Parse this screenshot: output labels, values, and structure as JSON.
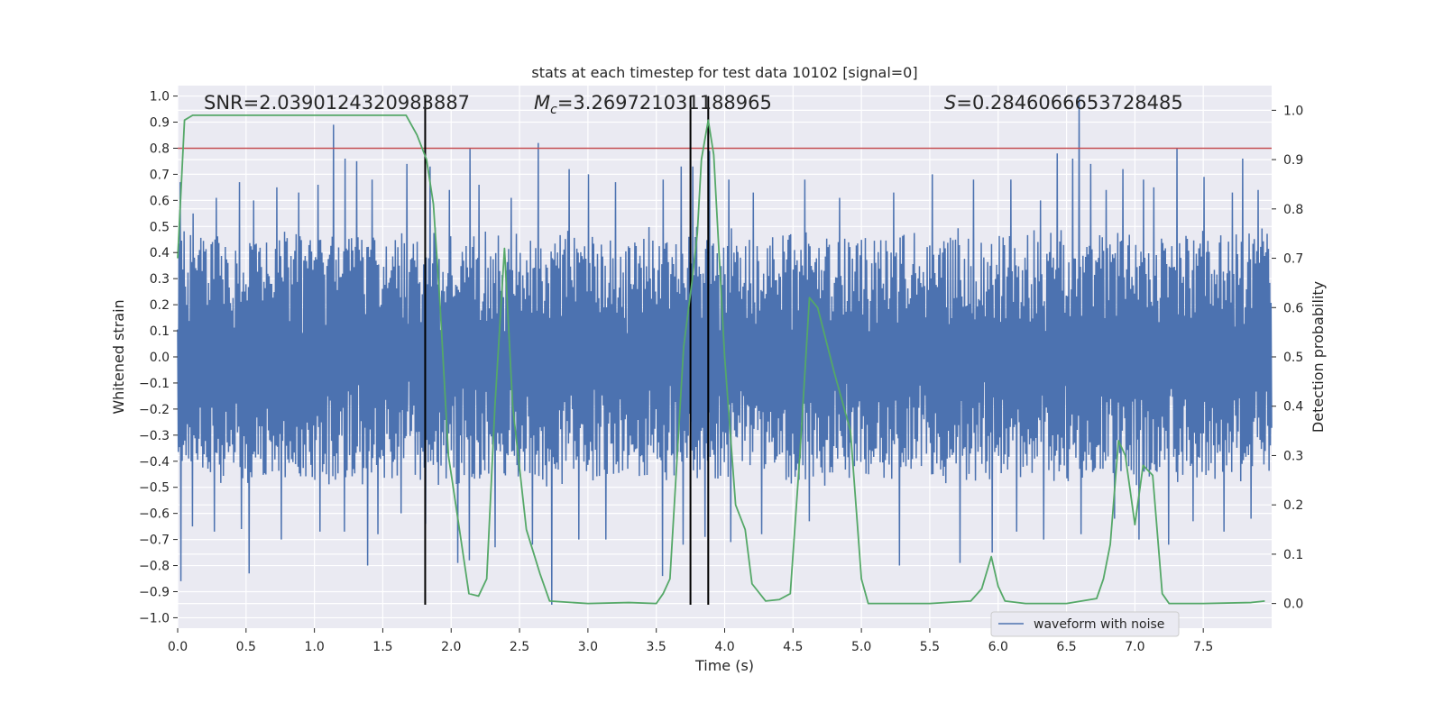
{
  "chart_data": {
    "type": "line",
    "title": "stats at each timestep for test data 10102 [signal=0]",
    "xlabel": "Time (s)",
    "ylabel": "Whitened strain",
    "y2label": "Detection probability",
    "xlim": [
      0.0,
      8.0
    ],
    "ylim": [
      -1.04,
      1.04
    ],
    "y2lim": [
      -0.05,
      1.05
    ],
    "xticks": [
      "0.0",
      "0.5",
      "1.0",
      "1.5",
      "2.0",
      "2.5",
      "3.0",
      "3.5",
      "4.0",
      "4.5",
      "5.0",
      "5.5",
      "6.0",
      "6.5",
      "7.0",
      "7.5"
    ],
    "yticks": [
      "1.0",
      "0.9",
      "0.8",
      "0.7",
      "0.6",
      "0.5",
      "0.4",
      "0.3",
      "0.2",
      "0.1",
      "0.0",
      "−0.1",
      "−0.2",
      "−0.3",
      "−0.4",
      "−0.5",
      "−0.6",
      "−0.7",
      "−0.8",
      "−0.9",
      "−1.0"
    ],
    "y2ticks": [
      "1.0",
      "0.9",
      "0.8",
      "0.7",
      "0.6",
      "0.5",
      "0.4",
      "0.3",
      "0.2",
      "0.1",
      "0.0"
    ],
    "grid": true,
    "legend_position": "lower-right",
    "annotations": {
      "snr": "SNR=2.0390124320983887",
      "mc_prefix": "M",
      "mc_sub": "c",
      "mc_value": "=3.269721031188965",
      "s_prefix": "S",
      "s_value": "=0.2846066653728485"
    },
    "threshold": {
      "y": 0.8,
      "color": "#c44e52"
    },
    "vertical_lines": [
      1.81,
      3.75,
      3.88
    ],
    "series": [
      {
        "name": "waveform with noise",
        "axis": "left",
        "color": "#4c72b0",
        "style": "dense-noise",
        "envelope_typical": 0.45,
        "peaks": [
          [
            0.02,
            0.67
          ],
          [
            0.11,
            0.55
          ],
          [
            0.28,
            0.61
          ],
          [
            0.45,
            0.67
          ],
          [
            0.55,
            0.6
          ],
          [
            0.72,
            0.65
          ],
          [
            0.88,
            0.63
          ],
          [
            1.02,
            0.66
          ],
          [
            1.14,
            0.89
          ],
          [
            1.22,
            0.76
          ],
          [
            1.31,
            0.75
          ],
          [
            1.42,
            0.68
          ],
          [
            1.67,
            0.74
          ],
          [
            1.84,
            0.73
          ],
          [
            1.98,
            0.64
          ],
          [
            2.14,
            0.8
          ],
          [
            2.2,
            0.66
          ],
          [
            2.44,
            0.61
          ],
          [
            2.63,
            0.82
          ],
          [
            2.86,
            0.72
          ],
          [
            3.0,
            0.7
          ],
          [
            3.2,
            0.67
          ],
          [
            3.55,
            0.68
          ],
          [
            3.68,
            0.73
          ],
          [
            3.76,
            0.73
          ],
          [
            3.89,
            0.79
          ],
          [
            4.03,
            0.68
          ],
          [
            4.21,
            0.63
          ],
          [
            4.58,
            0.68
          ],
          [
            4.84,
            0.61
          ],
          [
            5.23,
            0.63
          ],
          [
            5.52,
            0.7
          ],
          [
            5.82,
            0.68
          ],
          [
            6.09,
            0.68
          ],
          [
            6.31,
            0.6
          ],
          [
            6.43,
            0.78
          ],
          [
            6.54,
            0.76
          ],
          [
            6.59,
            1.0
          ],
          [
            6.67,
            0.74
          ],
          [
            6.79,
            0.64
          ],
          [
            6.91,
            0.72
          ],
          [
            7.06,
            0.68
          ],
          [
            7.14,
            0.65
          ],
          [
            7.31,
            0.8
          ],
          [
            7.5,
            0.69
          ],
          [
            7.71,
            0.63
          ],
          [
            7.79,
            0.76
          ],
          [
            7.9,
            0.64
          ]
        ],
        "troughs": [
          [
            0.02,
            -0.86
          ],
          [
            0.11,
            -0.65
          ],
          [
            0.27,
            -0.67
          ],
          [
            0.46,
            -0.66
          ],
          [
            0.52,
            -0.83
          ],
          [
            0.76,
            -0.7
          ],
          [
            1.04,
            -0.67
          ],
          [
            1.22,
            -0.67
          ],
          [
            1.39,
            -0.8
          ],
          [
            1.46,
            -0.68
          ],
          [
            1.63,
            -0.6
          ],
          [
            1.81,
            -0.64
          ],
          [
            2.05,
            -0.79
          ],
          [
            2.13,
            -0.78
          ],
          [
            2.32,
            -0.73
          ],
          [
            2.59,
            -0.72
          ],
          [
            2.73,
            -0.95
          ],
          [
            2.93,
            -0.7
          ],
          [
            3.13,
            -0.7
          ],
          [
            3.54,
            -0.84
          ],
          [
            3.69,
            -0.72
          ],
          [
            3.85,
            -0.69
          ],
          [
            4.04,
            -0.71
          ],
          [
            4.27,
            -0.68
          ],
          [
            4.62,
            -0.63
          ],
          [
            5.28,
            -0.8
          ],
          [
            5.72,
            -0.79
          ],
          [
            5.95,
            -0.75
          ],
          [
            6.13,
            -0.67
          ],
          [
            6.33,
            -0.7
          ],
          [
            6.6,
            -0.68
          ],
          [
            6.85,
            -0.62
          ],
          [
            7.03,
            -0.7
          ],
          [
            7.24,
            -0.72
          ],
          [
            7.42,
            -0.63
          ],
          [
            7.65,
            -0.67
          ],
          [
            7.85,
            -0.62
          ]
        ]
      },
      {
        "name": "",
        "axis": "right",
        "color": "#55a868",
        "x": [
          0.0,
          0.05,
          0.11,
          0.2,
          0.5,
          1.0,
          1.5,
          1.67,
          1.75,
          1.82,
          1.87,
          1.92,
          1.98,
          2.05,
          2.13,
          2.2,
          2.26,
          2.32,
          2.39,
          2.45,
          2.55,
          2.65,
          2.72,
          3.0,
          3.3,
          3.5,
          3.55,
          3.6,
          3.7,
          3.76,
          3.8,
          3.83,
          3.88,
          3.92,
          4.0,
          4.08,
          4.15,
          4.2,
          4.3,
          4.4,
          4.48,
          4.55,
          4.62,
          4.68,
          4.8,
          4.92,
          5.0,
          5.05,
          5.2,
          5.5,
          5.8,
          5.88,
          5.95,
          6.0,
          6.05,
          6.2,
          6.5,
          6.72,
          6.77,
          6.82,
          6.88,
          6.93,
          7.0,
          7.06,
          7.13,
          7.2,
          7.25,
          7.5,
          7.85,
          7.95
        ],
        "y": [
          0.7,
          0.98,
          0.99,
          0.99,
          0.99,
          0.99,
          0.99,
          0.99,
          0.95,
          0.9,
          0.81,
          0.6,
          0.3,
          0.17,
          0.02,
          0.015,
          0.05,
          0.4,
          0.72,
          0.4,
          0.15,
          0.06,
          0.005,
          0.0,
          0.002,
          0.0,
          0.02,
          0.05,
          0.52,
          0.65,
          0.75,
          0.9,
          0.98,
          0.91,
          0.5,
          0.2,
          0.15,
          0.04,
          0.005,
          0.008,
          0.02,
          0.3,
          0.62,
          0.6,
          0.47,
          0.35,
          0.05,
          0.0,
          0.0,
          0.0,
          0.005,
          0.03,
          0.095,
          0.035,
          0.005,
          0.0,
          0.0,
          0.01,
          0.05,
          0.12,
          0.33,
          0.3,
          0.16,
          0.28,
          0.26,
          0.02,
          0.0,
          0.0,
          0.002,
          0.005
        ]
      }
    ]
  }
}
